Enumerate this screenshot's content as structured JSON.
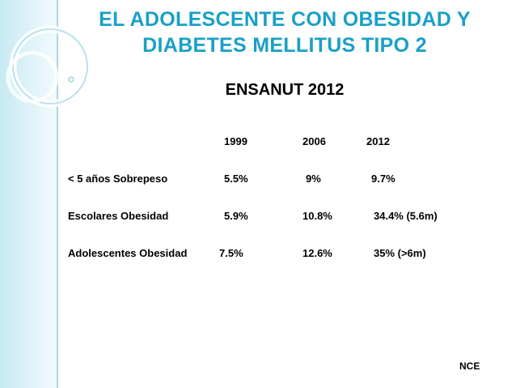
{
  "slide": {
    "title_line1": "EL ADOLESCENTE CON OBESIDAD Y",
    "title_line2": "DIABETES MELLITUS TIPO  2",
    "subtitle": "ENSANUT  2012",
    "footer": "NCE"
  },
  "table": {
    "headers": [
      "1999",
      "2006",
      "2012"
    ],
    "rows": [
      {
        "label": "< 5 años  Sobrepeso",
        "v1999": "5.5%",
        "v2006": "9%",
        "v2012": "9.7%"
      },
      {
        "label": "Escolares Obesidad",
        "v1999": "5.9%",
        "v2006": "10.8%",
        "v2012": "34.4% (5.6m)"
      },
      {
        "label": "Adolescentes  Obesidad",
        "v1999": "7.5%",
        "v2006": "12.6%",
        "v2012": "35%  (>6m)"
      }
    ]
  },
  "colors": {
    "title": "#1aa0c6",
    "left_band": "#c7eaf3"
  }
}
